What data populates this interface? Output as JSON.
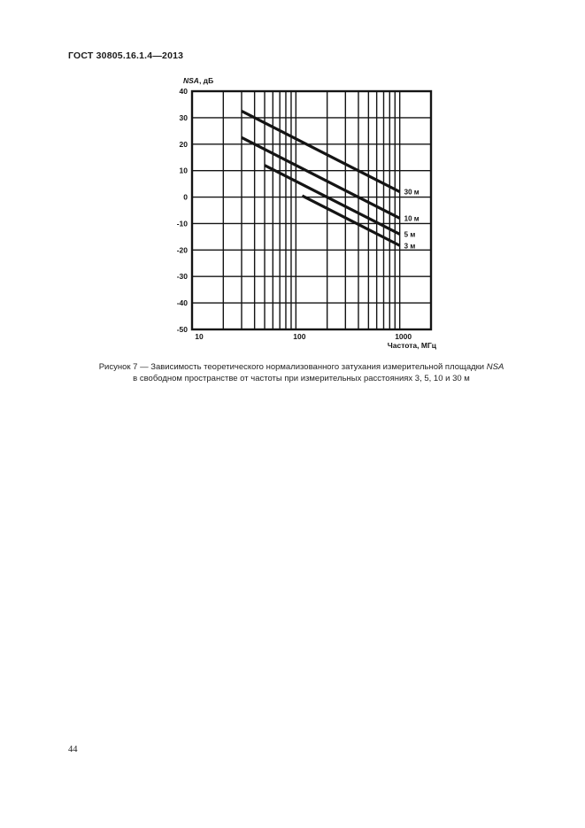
{
  "page": {
    "header": "ГОСТ 30805.16.1.4—2013",
    "page_number": "44"
  },
  "figure": {
    "caption_line1_prefix": "Рисунок 7 — Зависимость теоретического нормализованного затухания измерительной площадки ",
    "caption_line1_italic": "NSA",
    "caption_line2": "в свободном пространстве от частоты при измерительных расстояниях 3, 5, 10 и 30 м"
  },
  "chart_data": {
    "type": "line",
    "x_scale": "log",
    "xlim": [
      10,
      2000
    ],
    "ylim": [
      -50,
      40
    ],
    "grid": true,
    "y_axis_label_italic": "NSA",
    "y_axis_label_rest": ", дБ",
    "x_axis_label": "Частота, МГц",
    "y_ticks": [
      40,
      30,
      20,
      10,
      0,
      -10,
      -20,
      -30,
      -40,
      -50
    ],
    "x_tick_labels": [
      {
        "value": 10,
        "label": "10"
      },
      {
        "value": 100,
        "label": "100"
      },
      {
        "value": 1000,
        "label": "1000"
      }
    ],
    "ink_color": "#141414",
    "series": [
      {
        "name": "30 м",
        "points": [
          [
            30,
            32.5
          ],
          [
            1000,
            2
          ]
        ]
      },
      {
        "name": "10 м",
        "points": [
          [
            30,
            22.5
          ],
          [
            1000,
            -8
          ]
        ]
      },
      {
        "name": "5 м",
        "points": [
          [
            50,
            12
          ],
          [
            1000,
            -14
          ]
        ]
      },
      {
        "name": "3 м",
        "points": [
          [
            115,
            0.5
          ],
          [
            1000,
            -18.3
          ]
        ]
      }
    ]
  }
}
